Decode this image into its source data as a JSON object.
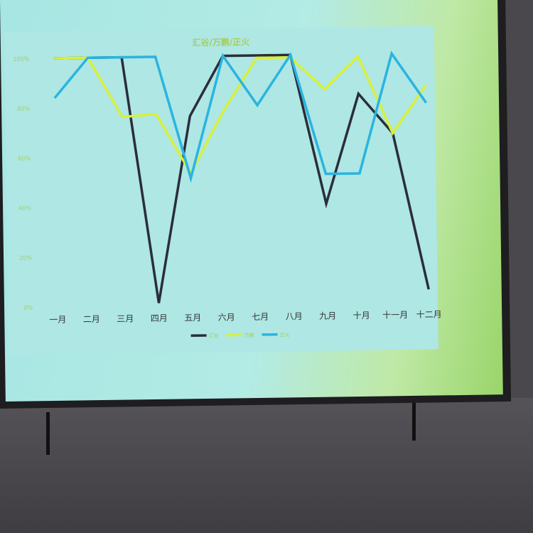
{
  "chart_data": {
    "type": "line",
    "title": "汇谷/万鹏/正火",
    "categories": [
      "一月",
      "二月",
      "三月",
      "四月",
      "五月",
      "六月",
      "七月",
      "八月",
      "九月",
      "十月",
      "十一月",
      "十二月"
    ],
    "yticks": [
      "0%",
      "20%",
      "40%",
      "60%",
      "80%",
      "100%"
    ],
    "ylim": [
      0,
      100
    ],
    "yunit": "%",
    "grid": false,
    "legend": "bottom",
    "series": [
      {
        "name": "汇谷",
        "color": "#2b2d3a",
        "values": [
          100,
          100,
          100,
          1,
          76,
          100,
          100,
          100,
          40,
          84,
          68,
          5
        ]
      },
      {
        "name": "万鹏",
        "color": "#d8f03a",
        "values": [
          100,
          100,
          76,
          77,
          53,
          78,
          99,
          99,
          86,
          99,
          68,
          87
        ]
      },
      {
        "name": "正火",
        "color": "#2ab4e0",
        "values": [
          84,
          100,
          100,
          100,
          51,
          100,
          80,
          100,
          52,
          52,
          100,
          80
        ]
      }
    ]
  }
}
